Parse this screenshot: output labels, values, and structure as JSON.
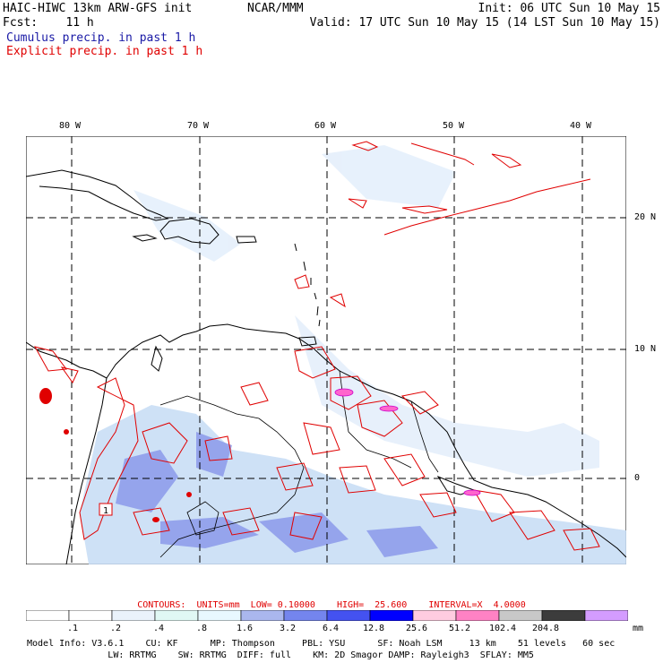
{
  "header": {
    "model": "HAIC-HIWC 13km ARW-GFS init",
    "org": "NCAR/MMM",
    "init": "Init: 06 UTC Sun 10 May 15",
    "fcst": "Fcst:    11 h",
    "valid": "Valid: 17 UTC Sun 10 May 15 (14 LST Sun 10 May 15)",
    "legend_cumulus": "Cumulus precip. in past 1 h",
    "legend_explicit": "Explicit precip. in past 1 h"
  },
  "map": {
    "longitude_labels": [
      "80 W",
      "70 W",
      "60 W",
      "50 W",
      "40 W"
    ],
    "latitude_labels": [
      "20 N",
      "10 N",
      "0"
    ],
    "spot_label": "1"
  },
  "contours": {
    "text": "CONTOURS:  UNITS=mm  LOW= 0.10000    HIGH=  25.600    INTERVAL=X  4.0000"
  },
  "scale": {
    "labels": [
      ".1",
      ".2",
      ".4",
      ".8",
      "1.6",
      "3.2",
      "6.4",
      "12.8",
      "25.6",
      "51.2",
      "102.4",
      "204.8"
    ],
    "unit": "mm",
    "colors": [
      "#ffffff",
      "#ffffff",
      "#eaf2fb",
      "#e0f8f4",
      "#e8f8ff",
      "#aab7ee",
      "#7485ee",
      "#4452f0",
      "#0000ff",
      "#ffcce0",
      "#ff82c4",
      "#c8c8c8",
      "#3c3c3c",
      "#d49cff"
    ]
  },
  "model_info": {
    "line1": "Model Info: V3.6.1    CU: KF      MP: Thompson     PBL: YSU      SF: Noah LSM     13 km    51 levels   60 sec",
    "line2": "               LW: RRTMG    SW: RRTMG  DIFF: full    KM: 2D Smagor DAMP: Rayleigh3  SFLAY: MM5"
  }
}
